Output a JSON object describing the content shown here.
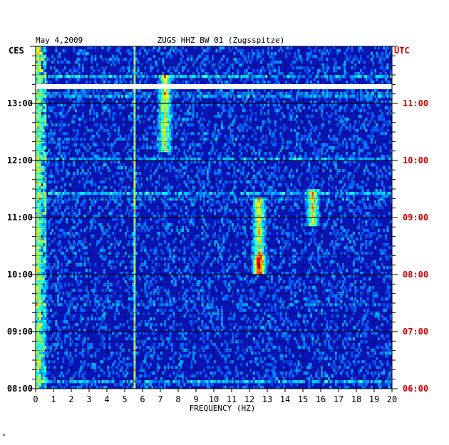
{
  "header": {
    "date": "May 4,2009",
    "station": "ZUGS HHZ BW 01 (Zugsspitze)",
    "left_tz": "CES",
    "right_tz": "UTC"
  },
  "footer": {
    "mark": "*"
  },
  "colors": {
    "left_axis": "#000000",
    "right_axis": "#cc0000",
    "background_field": "#0a14b4",
    "gap": "#ffffff"
  },
  "chart_data": {
    "type": "heatmap",
    "title": "ZUGS HHZ BW 01 (Zugsspitze)",
    "xlabel": "FREQUENCY (HZ)",
    "xlim": [
      0,
      20
    ],
    "x_ticks": [
      "0",
      "1",
      "2",
      "3",
      "4",
      "5",
      "6",
      "7",
      "8",
      "9",
      "10",
      "11",
      "12",
      "13",
      "14",
      "15",
      "16",
      "17",
      "18",
      "19",
      "20"
    ],
    "y_left_label": "CES",
    "y_left_ticks": [
      "13:00",
      "12:00",
      "11:00",
      "10:00",
      "09:00",
      "08:00"
    ],
    "y_right_label": "UTC",
    "y_right_ticks": [
      "11:00",
      "10:00",
      "09:00",
      "08:00",
      "07:00",
      "06:00"
    ],
    "time_range_ces": [
      "08:00",
      "14:00"
    ],
    "data_gap_ces": "13:18",
    "colormap": "jet",
    "grid": true,
    "features": [
      {
        "freq_hz": 5.5,
        "note": "persistent narrow line"
      },
      {
        "freq_hz": 7.2,
        "time_ces": "12:10-13:30"
      },
      {
        "freq_hz": 12.5,
        "time_ces": "10:00-11:20",
        "peak": "red"
      },
      {
        "freq_hz": 15.5,
        "time_ces": "11:10"
      }
    ]
  }
}
